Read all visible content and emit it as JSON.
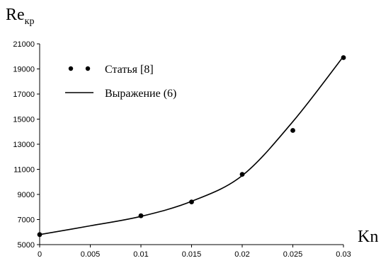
{
  "chart_data": {
    "type": "line",
    "title": "",
    "xlabel": "Kn",
    "ylabel_main": "Re",
    "ylabel_sub": "кр",
    "xlim": [
      0,
      0.03
    ],
    "ylim": [
      5000,
      21000
    ],
    "x_ticks": [
      0,
      0.005,
      0.01,
      0.015,
      0.02,
      0.025,
      0.03
    ],
    "x_tick_labels": [
      "0",
      "0.005",
      "0.01",
      "0.015",
      "0.02",
      "0.025",
      "0.03"
    ],
    "y_ticks": [
      5000,
      7000,
      9000,
      11000,
      13000,
      15000,
      17000,
      19000,
      21000
    ],
    "y_tick_labels": [
      "5000",
      "7000",
      "9000",
      "11000",
      "13000",
      "15000",
      "17000",
      "19000",
      "21000"
    ],
    "grid": false,
    "legend_position": "top-left",
    "series": [
      {
        "name": "Статья [8]",
        "kind": "markers",
        "color": "#000000",
        "x": [
          0,
          0.01,
          0.015,
          0.02,
          0.025,
          0.03
        ],
        "y": [
          5800,
          7300,
          8400,
          10600,
          14100,
          19900
        ]
      },
      {
        "name": "Выражение (6)",
        "kind": "line",
        "color": "#000000",
        "x": [
          0,
          0.005,
          0.01,
          0.015,
          0.02,
          0.025,
          0.03
        ],
        "y": [
          5800,
          6500,
          7250,
          8450,
          10500,
          14800,
          20000
        ]
      }
    ]
  }
}
